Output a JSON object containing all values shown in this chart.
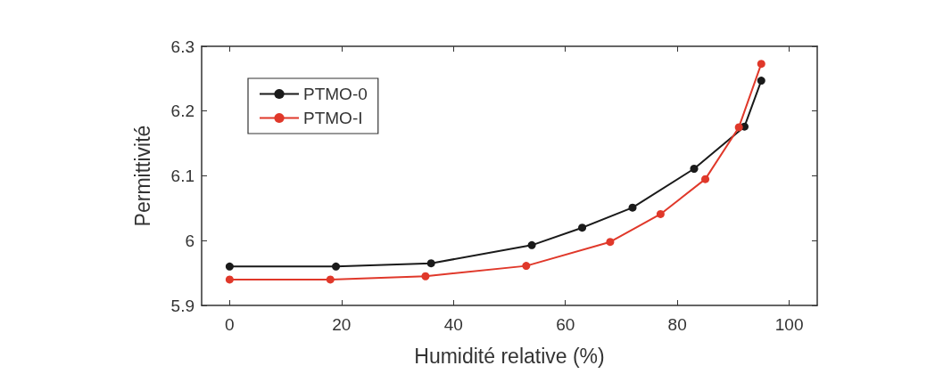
{
  "chart_data": {
    "type": "line",
    "xlabel": "Humidité relative (%)",
    "ylabel": "Permittivité",
    "xlim": [
      -5,
      105
    ],
    "xticks": [
      0,
      20,
      40,
      60,
      80,
      100
    ],
    "ylim": [
      5.9,
      6.3
    ],
    "yticks": [
      5.9,
      6,
      6.1,
      6.2,
      6.3
    ],
    "grid": false,
    "legend": "top left",
    "marker": "circle",
    "line_style": "solid",
    "series": [
      {
        "name": "PTMO-0",
        "color": "#1a1a1a",
        "x": [
          0,
          19,
          36,
          54,
          63,
          72,
          83,
          92,
          95
        ],
        "values": [
          5.96,
          5.96,
          5.965,
          5.993,
          6.02,
          6.051,
          6.111,
          6.176,
          6.247
        ]
      },
      {
        "name": "PTMO-I",
        "color": "#e0382a",
        "x": [
          0,
          18,
          35,
          53,
          68,
          77,
          85,
          91,
          95
        ],
        "values": [
          5.94,
          5.94,
          5.945,
          5.961,
          5.998,
          6.041,
          6.095,
          6.175,
          6.273
        ]
      }
    ]
  }
}
